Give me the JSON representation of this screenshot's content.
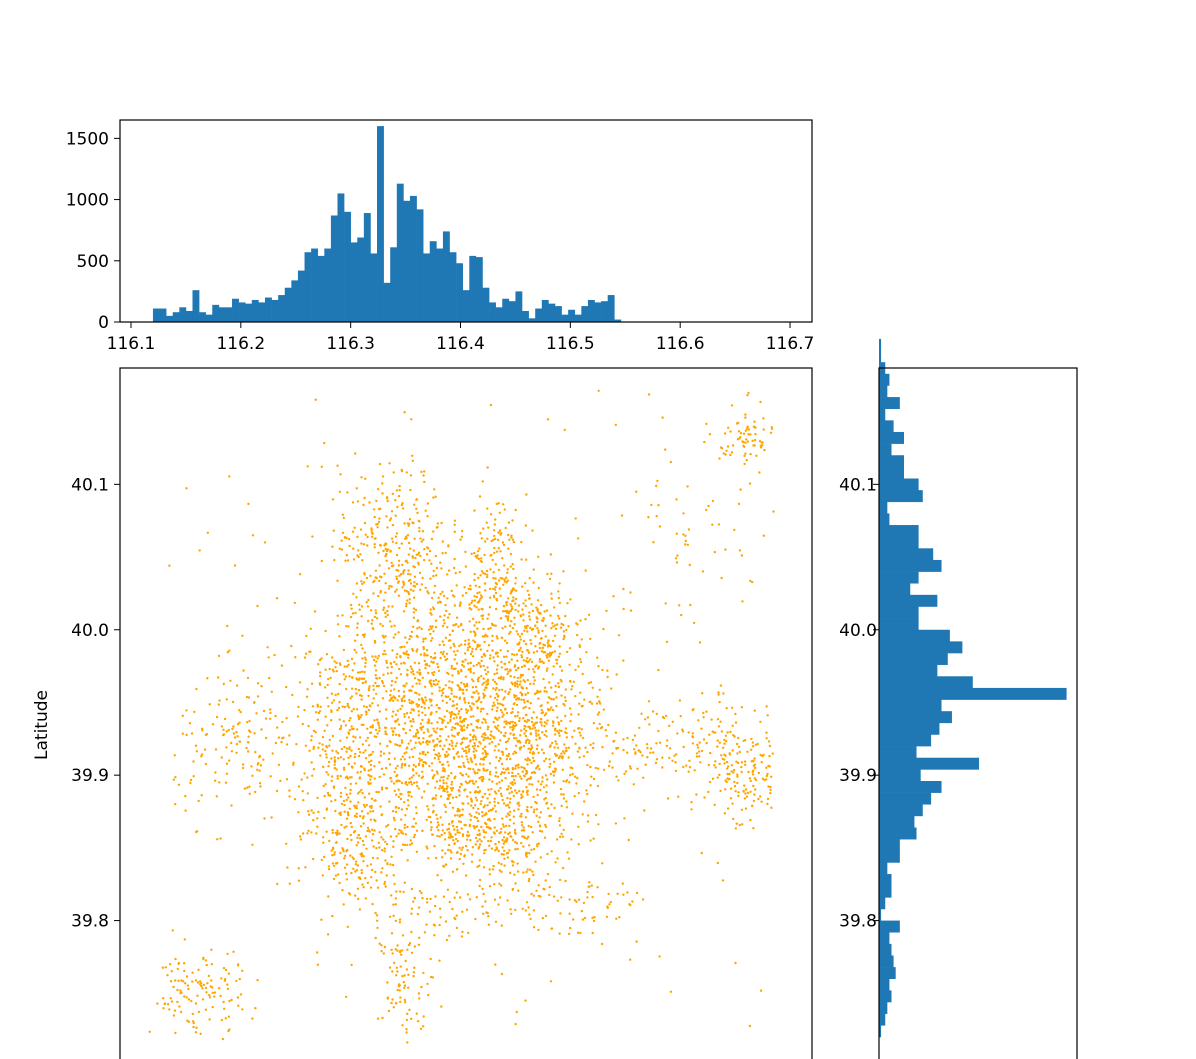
{
  "chart_data": [
    {
      "type": "bar",
      "panel": "top-histogram",
      "xlim": [
        116.09,
        116.72
      ],
      "ylim": [
        0,
        1650
      ],
      "x_ticks": [
        116.1,
        116.2,
        116.3,
        116.4,
        116.5,
        116.6,
        116.7
      ],
      "x_tick_labels": [
        "116.1",
        "116.2",
        "116.3",
        "116.4",
        "116.5",
        "116.6",
        "116.7"
      ],
      "y_ticks": [
        0,
        500,
        1000,
        1500
      ],
      "y_tick_labels": [
        "0",
        "500",
        "1000",
        "1500"
      ],
      "bar_color": "#1f77b4",
      "bin_start": 116.12,
      "bin_width": 0.006,
      "values": [
        110,
        110,
        50,
        80,
        120,
        90,
        260,
        80,
        60,
        140,
        120,
        120,
        190,
        160,
        150,
        180,
        160,
        200,
        180,
        220,
        280,
        340,
        420,
        570,
        600,
        540,
        600,
        870,
        1050,
        900,
        650,
        690,
        890,
        560,
        1600,
        320,
        610,
        1130,
        990,
        1030,
        920,
        560,
        660,
        600,
        740,
        570,
        480,
        260,
        540,
        530,
        280,
        160,
        120,
        190,
        170,
        250,
        90,
        30,
        110,
        180,
        150,
        130,
        60,
        100,
        60,
        130,
        180,
        160,
        170,
        220,
        20
      ]
    },
    {
      "type": "scatter",
      "panel": "main-scatter",
      "ylabel": "Latitude",
      "xlim": [
        116.09,
        116.72
      ],
      "ylim": [
        39.7,
        40.18
      ],
      "y_ticks": [
        39.8,
        39.9,
        40.0,
        40.1
      ],
      "y_tick_labels": [
        "39.8",
        "39.9",
        "40.0",
        "40.1"
      ],
      "point_color": "#ffa500",
      "clusters": [
        {
          "x": 116.398,
          "y": 39.915,
          "sx": 0.055,
          "sy": 0.045,
          "n": 1200
        },
        {
          "x": 116.46,
          "y": 39.93,
          "sx": 0.035,
          "sy": 0.035,
          "n": 450
        },
        {
          "x": 116.33,
          "y": 39.96,
          "sx": 0.04,
          "sy": 0.04,
          "n": 350
        },
        {
          "x": 116.41,
          "y": 40.0,
          "sx": 0.035,
          "sy": 0.025,
          "n": 250
        },
        {
          "x": 116.34,
          "y": 40.06,
          "sx": 0.025,
          "sy": 0.025,
          "n": 260
        },
        {
          "x": 116.43,
          "y": 40.05,
          "sx": 0.012,
          "sy": 0.025,
          "n": 120
        },
        {
          "x": 116.47,
          "y": 40.0,
          "sx": 0.015,
          "sy": 0.02,
          "n": 120
        },
        {
          "x": 116.2,
          "y": 39.92,
          "sx": 0.03,
          "sy": 0.025,
          "n": 140
        },
        {
          "x": 116.29,
          "y": 39.91,
          "sx": 0.025,
          "sy": 0.035,
          "n": 180
        },
        {
          "x": 116.6,
          "y": 39.92,
          "sx": 0.045,
          "sy": 0.015,
          "n": 140
        },
        {
          "x": 116.66,
          "y": 39.9,
          "sx": 0.018,
          "sy": 0.02,
          "n": 150
        },
        {
          "x": 116.66,
          "y": 40.13,
          "sx": 0.012,
          "sy": 0.012,
          "n": 70
        },
        {
          "x": 116.16,
          "y": 39.75,
          "sx": 0.022,
          "sy": 0.015,
          "n": 130
        },
        {
          "x": 116.35,
          "y": 39.76,
          "sx": 0.012,
          "sy": 0.025,
          "n": 100
        },
        {
          "x": 116.31,
          "y": 39.85,
          "sx": 0.02,
          "sy": 0.02,
          "n": 140
        },
        {
          "x": 116.43,
          "y": 39.86,
          "sx": 0.03,
          "sy": 0.015,
          "n": 180
        },
        {
          "x": 116.5,
          "y": 39.81,
          "sx": 0.03,
          "sy": 0.012,
          "n": 60
        },
        {
          "x": 116.42,
          "y": 39.81,
          "sx": 0.04,
          "sy": 0.01,
          "n": 50
        },
        {
          "x": 116.6,
          "y": 40.05,
          "sx": 0.05,
          "sy": 0.04,
          "n": 50
        },
        {
          "x": 116.4,
          "y": 39.95,
          "sx": 0.14,
          "sy": 0.11,
          "n": 300
        }
      ]
    },
    {
      "type": "bar",
      "panel": "right-histogram",
      "orientation": "horizontal",
      "ylim": [
        39.7,
        40.18
      ],
      "y_ticks": [
        39.8,
        39.9,
        40.0,
        40.1
      ],
      "y_tick_labels": [
        "39.8",
        "39.9",
        "40.0",
        "40.1"
      ],
      "bar_color": "#1f77b4",
      "bin_start": 39.72,
      "bin_width": 0.008,
      "values": [
        20,
        60,
        80,
        120,
        100,
        160,
        140,
        120,
        100,
        200,
        20,
        60,
        120,
        120,
        80,
        200,
        200,
        360,
        340,
        420,
        500,
        600,
        400,
        960,
        360,
        500,
        580,
        700,
        600,
        1800,
        900,
        560,
        660,
        800,
        680,
        380,
        380,
        560,
        300,
        380,
        600,
        520,
        380,
        380,
        100,
        80,
        420,
        380,
        240,
        240,
        120,
        240,
        140,
        60,
        200,
        80,
        100,
        60,
        20,
        20
      ]
    }
  ]
}
